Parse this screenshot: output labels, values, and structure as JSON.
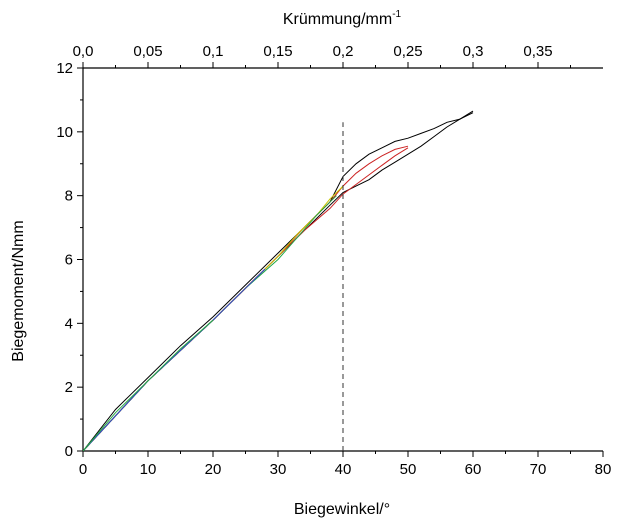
{
  "chart_data": {
    "type": "line",
    "xlabel": "Biegewinkel/°",
    "ylabel": "Biegemoment/Nmm",
    "x2label": "Krümmung/mm",
    "x2label_sup": "-1",
    "xlim": [
      0,
      80
    ],
    "ylim": [
      0,
      12
    ],
    "x2lim": [
      0,
      0.4
    ],
    "x_ticks": [
      0,
      10,
      20,
      30,
      40,
      50,
      60,
      70,
      80
    ],
    "x_tick_labels": [
      "0",
      "10",
      "20",
      "30",
      "40",
      "50",
      "60",
      "70",
      "80"
    ],
    "y_ticks": [
      0,
      2,
      4,
      6,
      8,
      10,
      12
    ],
    "y_tick_labels": [
      "0",
      "2",
      "4",
      "6",
      "8",
      "10",
      "12"
    ],
    "x2_ticks": [
      0,
      0.05,
      0.1,
      0.15,
      0.2,
      0.25,
      0.3,
      0.35
    ],
    "x2_tick_labels": [
      "0,0",
      "0,05",
      "0,1",
      "0,15",
      "0,2",
      "0,25",
      "0,3",
      "0,35"
    ],
    "reference_line": {
      "x": 40,
      "y_top": 10.3,
      "style": "dashed"
    },
    "grid": false,
    "series": [
      {
        "color": "#000000",
        "x": [
          0,
          5,
          10,
          15,
          20,
          25,
          30,
          33,
          36,
          38,
          40,
          42,
          44,
          46,
          48,
          50,
          52,
          54,
          56,
          58,
          60
        ],
        "y": [
          0,
          1.3,
          2.3,
          3.3,
          4.2,
          5.2,
          6.2,
          6.8,
          7.4,
          7.8,
          8.6,
          9.0,
          9.3,
          9.5,
          9.7,
          9.8,
          9.95,
          10.1,
          10.3,
          10.4,
          10.65
        ]
      },
      {
        "color": "#000000",
        "x": [
          0,
          10,
          20,
          30,
          34,
          38,
          40,
          42,
          44,
          46,
          48,
          50,
          52,
          54,
          56,
          58,
          60
        ],
        "y": [
          0,
          2.2,
          4.1,
          6.1,
          6.9,
          7.7,
          8.1,
          8.3,
          8.5,
          8.8,
          9.05,
          9.3,
          9.55,
          9.85,
          10.15,
          10.4,
          10.6
        ]
      },
      {
        "color": "#cc2222",
        "x": [
          0,
          10,
          20,
          30,
          34,
          38,
          40,
          42,
          44,
          46,
          48,
          50
        ],
        "y": [
          0,
          2.2,
          4.1,
          6.1,
          7.0,
          7.8,
          8.3,
          8.7,
          9.0,
          9.25,
          9.45,
          9.55
        ]
      },
      {
        "color": "#cc2222",
        "x": [
          0,
          10,
          20,
          30,
          34,
          38,
          40,
          42,
          44,
          46,
          48,
          50
        ],
        "y": [
          0,
          2.2,
          4.1,
          6.1,
          6.9,
          7.6,
          8.05,
          8.35,
          8.65,
          8.95,
          9.25,
          9.5
        ]
      },
      {
        "color": "#c8c800",
        "x": [
          0,
          10,
          20,
          25,
          30,
          33,
          36,
          38,
          40
        ],
        "y": [
          0,
          2.2,
          4.1,
          5.1,
          6.1,
          6.8,
          7.4,
          7.9,
          8.3
        ]
      },
      {
        "color": "#22aa44",
        "x": [
          0,
          10,
          20,
          25,
          30,
          33,
          36,
          39
        ],
        "y": [
          0,
          2.2,
          4.1,
          5.1,
          6.0,
          6.7,
          7.4,
          8.0
        ]
      },
      {
        "color": "#3344cc",
        "x": [
          0,
          10,
          20,
          25,
          28
        ],
        "y": [
          0,
          2.2,
          4.1,
          5.1,
          5.7
        ]
      },
      {
        "color": "#22aa44",
        "x": [
          0,
          5,
          10,
          15,
          20
        ],
        "y": [
          0,
          1.2,
          2.2,
          3.2,
          4.1
        ]
      }
    ]
  }
}
